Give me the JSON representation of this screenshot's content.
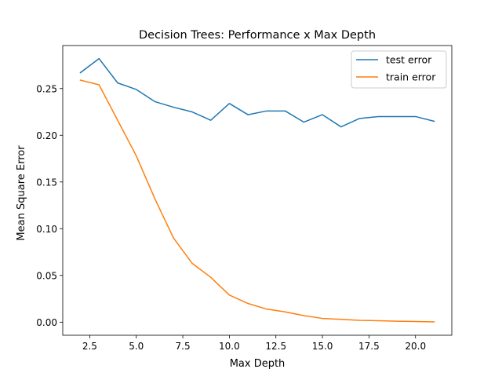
{
  "chart_data": {
    "type": "line",
    "title": "Decision Trees: Performance x Max Depth",
    "xlabel": "Max Depth",
    "ylabel": "Mean Square Error",
    "xlim": [
      1.05,
      21.95
    ],
    "ylim": [
      -0.014,
      0.296
    ],
    "xticks": [
      2.5,
      5.0,
      7.5,
      10.0,
      12.5,
      15.0,
      17.5,
      20.0
    ],
    "xtick_labels": [
      "2.5",
      "5.0",
      "7.5",
      "10.0",
      "12.5",
      "15.0",
      "17.5",
      "20.0"
    ],
    "yticks": [
      0.0,
      0.05,
      0.1,
      0.15,
      0.2,
      0.25
    ],
    "ytick_labels": [
      "0.00",
      "0.05",
      "0.10",
      "0.15",
      "0.20",
      "0.25"
    ],
    "grid": false,
    "legend_position": "top-right",
    "x": [
      2,
      3,
      4,
      5,
      6,
      7,
      8,
      9,
      10,
      11,
      12,
      13,
      14,
      15,
      16,
      17,
      18,
      19,
      20,
      21
    ],
    "series": [
      {
        "name": "test error",
        "color": "#1f77b4",
        "values": [
          0.267,
          0.282,
          0.256,
          0.249,
          0.236,
          0.23,
          0.225,
          0.216,
          0.234,
          0.222,
          0.226,
          0.226,
          0.214,
          0.222,
          0.209,
          0.218,
          0.22,
          0.22,
          0.22,
          0.215
        ]
      },
      {
        "name": "train error",
        "color": "#ff7f0e",
        "values": [
          0.259,
          0.254,
          0.216,
          0.178,
          0.132,
          0.09,
          0.063,
          0.048,
          0.029,
          0.02,
          0.014,
          0.011,
          0.007,
          0.004,
          0.003,
          0.002,
          0.0015,
          0.001,
          0.0007,
          0.0003
        ]
      }
    ]
  }
}
